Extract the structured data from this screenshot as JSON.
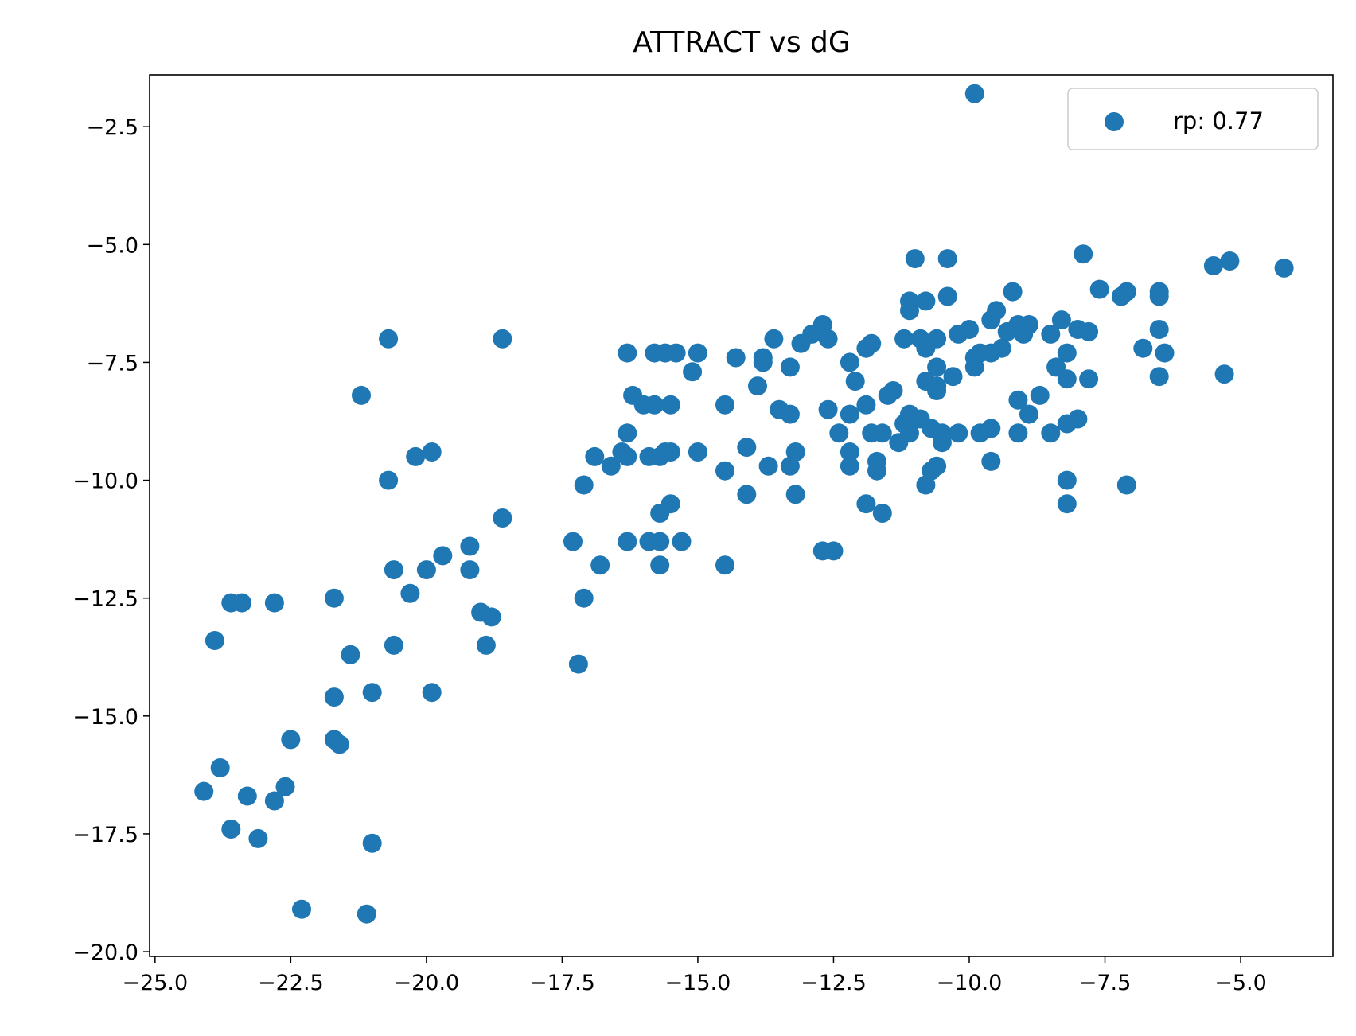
{
  "chart_data": {
    "type": "scatter",
    "title": "ATTRACT vs dG",
    "xlabel": "",
    "ylabel": "",
    "xlim": [
      -25.1,
      -3.3
    ],
    "ylim": [
      -20.1,
      -1.4
    ],
    "xticks": [
      -25.0,
      -22.5,
      -20.0,
      -17.5,
      -15.0,
      -12.5,
      -10.0,
      -7.5,
      -5.0
    ],
    "xtick_labels": [
      "−25.0",
      "−22.5",
      "−20.0",
      "−17.5",
      "−15.0",
      "−12.5",
      "−10.0",
      "−7.5",
      "−5.0"
    ],
    "yticks": [
      -2.5,
      -5.0,
      -7.5,
      -10.0,
      -12.5,
      -15.0,
      -17.5,
      -20.0
    ],
    "ytick_labels": [
      "−2.5",
      "−5.0",
      "−7.5",
      "−10.0",
      "−12.5",
      "−15.0",
      "−17.5",
      "−20.0"
    ],
    "grid": false,
    "legend_position": "top-right",
    "series": [
      {
        "name": "rp: 0.77",
        "color": "#1f77b4",
        "points": [
          [
            -9.9,
            -1.8
          ],
          [
            -4.2,
            -5.5
          ],
          [
            -5.2,
            -5.35
          ],
          [
            -5.5,
            -5.45
          ],
          [
            -7.9,
            -5.2
          ],
          [
            -11.0,
            -5.3
          ],
          [
            -10.4,
            -5.3
          ],
          [
            -7.6,
            -5.95
          ],
          [
            -7.1,
            -6.0
          ],
          [
            -7.2,
            -6.1
          ],
          [
            -6.5,
            -6.0
          ],
          [
            -6.5,
            -6.1
          ],
          [
            -9.2,
            -6.0
          ],
          [
            -11.1,
            -6.2
          ],
          [
            -10.8,
            -6.2
          ],
          [
            -10.4,
            -6.1
          ],
          [
            -11.1,
            -6.4
          ],
          [
            -9.5,
            -6.4
          ],
          [
            -9.6,
            -6.6
          ],
          [
            -9.1,
            -6.7
          ],
          [
            -8.9,
            -6.7
          ],
          [
            -8.3,
            -6.6
          ],
          [
            -8.0,
            -6.8
          ],
          [
            -7.8,
            -6.85
          ],
          [
            -8.5,
            -6.9
          ],
          [
            -9.0,
            -6.9
          ],
          [
            -9.3,
            -6.85
          ],
          [
            -10.0,
            -6.8
          ],
          [
            -10.2,
            -6.9
          ],
          [
            -6.5,
            -6.8
          ],
          [
            -12.7,
            -6.7
          ],
          [
            -12.9,
            -6.9
          ],
          [
            -12.6,
            -7.0
          ],
          [
            -13.1,
            -7.1
          ],
          [
            -13.6,
            -7.0
          ],
          [
            -11.2,
            -7.0
          ],
          [
            -10.9,
            -7.0
          ],
          [
            -10.6,
            -7.0
          ],
          [
            -10.8,
            -7.2
          ],
          [
            -11.8,
            -7.1
          ],
          [
            -11.9,
            -7.2
          ],
          [
            -9.6,
            -7.3
          ],
          [
            -9.8,
            -7.3
          ],
          [
            -9.9,
            -7.4
          ],
          [
            -9.4,
            -7.2
          ],
          [
            -6.8,
            -7.2
          ],
          [
            -6.4,
            -7.3
          ],
          [
            -8.2,
            -7.3
          ],
          [
            -16.3,
            -7.3
          ],
          [
            -15.8,
            -7.3
          ],
          [
            -15.6,
            -7.3
          ],
          [
            -15.4,
            -7.3
          ],
          [
            -15.0,
            -7.3
          ],
          [
            -13.8,
            -7.4
          ],
          [
            -13.8,
            -7.5
          ],
          [
            -14.3,
            -7.4
          ],
          [
            -12.2,
            -7.5
          ],
          [
            -13.3,
            -7.6
          ],
          [
            -15.1,
            -7.7
          ],
          [
            -10.6,
            -7.6
          ],
          [
            -9.9,
            -7.6
          ],
          [
            -8.4,
            -7.6
          ],
          [
            -5.3,
            -7.75
          ],
          [
            -6.5,
            -7.8
          ],
          [
            -7.8,
            -7.85
          ],
          [
            -8.2,
            -7.85
          ],
          [
            -10.3,
            -7.8
          ],
          [
            -10.8,
            -7.9
          ],
          [
            -10.6,
            -8.0
          ],
          [
            -10.6,
            -8.1
          ],
          [
            -12.1,
            -7.9
          ],
          [
            -13.9,
            -8.0
          ],
          [
            -11.4,
            -8.1
          ],
          [
            -11.5,
            -8.2
          ],
          [
            -16.2,
            -8.2
          ],
          [
            -16.0,
            -8.4
          ],
          [
            -15.8,
            -8.4
          ],
          [
            -15.5,
            -8.4
          ],
          [
            -14.5,
            -8.4
          ],
          [
            -21.2,
            -8.2
          ],
          [
            -20.7,
            -7.0
          ],
          [
            -18.6,
            -7.0
          ],
          [
            -9.1,
            -8.3
          ],
          [
            -8.7,
            -8.2
          ],
          [
            -8.9,
            -8.6
          ],
          [
            -11.9,
            -8.4
          ],
          [
            -12.2,
            -8.6
          ],
          [
            -12.6,
            -8.5
          ],
          [
            -13.3,
            -8.6
          ],
          [
            -13.5,
            -8.5
          ],
          [
            -11.1,
            -8.6
          ],
          [
            -10.9,
            -8.7
          ],
          [
            -11.2,
            -8.8
          ],
          [
            -10.7,
            -8.9
          ],
          [
            -10.5,
            -9.0
          ],
          [
            -10.2,
            -9.0
          ],
          [
            -9.8,
            -9.0
          ],
          [
            -9.6,
            -8.9
          ],
          [
            -9.1,
            -9.0
          ],
          [
            -8.5,
            -9.0
          ],
          [
            -8.2,
            -8.8
          ],
          [
            -8.0,
            -8.7
          ],
          [
            -12.4,
            -9.0
          ],
          [
            -11.8,
            -9.0
          ],
          [
            -11.6,
            -9.0
          ],
          [
            -11.3,
            -9.2
          ],
          [
            -11.1,
            -9.0
          ],
          [
            -10.5,
            -9.2
          ],
          [
            -12.2,
            -9.4
          ],
          [
            -13.2,
            -9.4
          ],
          [
            -14.1,
            -9.3
          ],
          [
            -15.0,
            -9.4
          ],
          [
            -16.3,
            -9.0
          ],
          [
            -16.4,
            -9.4
          ],
          [
            -16.3,
            -9.5
          ],
          [
            -15.9,
            -9.5
          ],
          [
            -15.7,
            -9.5
          ],
          [
            -15.6,
            -9.4
          ],
          [
            -15.5,
            -9.4
          ],
          [
            -16.9,
            -9.5
          ],
          [
            -16.6,
            -9.7
          ],
          [
            -19.9,
            -9.4
          ],
          [
            -20.2,
            -9.5
          ],
          [
            -20.7,
            -10.0
          ],
          [
            -9.6,
            -9.6
          ],
          [
            -11.7,
            -9.6
          ],
          [
            -11.7,
            -9.8
          ],
          [
            -12.2,
            -9.7
          ],
          [
            -13.3,
            -9.7
          ],
          [
            -13.7,
            -9.7
          ],
          [
            -14.5,
            -9.8
          ],
          [
            -10.6,
            -9.7
          ],
          [
            -10.7,
            -9.8
          ],
          [
            -10.8,
            -10.1
          ],
          [
            -7.1,
            -10.1
          ],
          [
            -8.2,
            -10.0
          ],
          [
            -17.1,
            -10.1
          ],
          [
            -14.1,
            -10.3
          ],
          [
            -13.2,
            -10.3
          ],
          [
            -11.9,
            -10.5
          ],
          [
            -11.6,
            -10.7
          ],
          [
            -8.2,
            -10.5
          ],
          [
            -15.5,
            -10.5
          ],
          [
            -15.7,
            -10.7
          ],
          [
            -18.6,
            -10.8
          ],
          [
            -17.3,
            -11.3
          ],
          [
            -16.3,
            -11.3
          ],
          [
            -15.9,
            -11.3
          ],
          [
            -15.7,
            -11.3
          ],
          [
            -15.3,
            -11.3
          ],
          [
            -15.7,
            -11.8
          ],
          [
            -16.8,
            -11.8
          ],
          [
            -14.5,
            -11.8
          ],
          [
            -12.7,
            -11.5
          ],
          [
            -12.5,
            -11.5
          ],
          [
            -19.2,
            -11.4
          ],
          [
            -19.7,
            -11.6
          ],
          [
            -20.0,
            -11.9
          ],
          [
            -19.2,
            -11.9
          ],
          [
            -20.6,
            -11.9
          ],
          [
            -17.1,
            -12.5
          ],
          [
            -20.3,
            -12.4
          ],
          [
            -21.7,
            -12.5
          ],
          [
            -22.8,
            -12.6
          ],
          [
            -23.6,
            -12.6
          ],
          [
            -23.4,
            -12.6
          ],
          [
            -19.0,
            -12.8
          ],
          [
            -18.8,
            -12.9
          ],
          [
            -23.9,
            -13.4
          ],
          [
            -20.6,
            -13.5
          ],
          [
            -18.9,
            -13.5
          ],
          [
            -21.4,
            -13.7
          ],
          [
            -17.2,
            -13.9
          ],
          [
            -21.0,
            -14.5
          ],
          [
            -19.9,
            -14.5
          ],
          [
            -21.7,
            -14.6
          ],
          [
            -22.5,
            -15.5
          ],
          [
            -21.7,
            -15.5
          ],
          [
            -21.6,
            -15.6
          ],
          [
            -23.8,
            -16.1
          ],
          [
            -24.1,
            -16.6
          ],
          [
            -23.3,
            -16.7
          ],
          [
            -22.6,
            -16.5
          ],
          [
            -22.8,
            -16.8
          ],
          [
            -23.6,
            -17.4
          ],
          [
            -23.1,
            -17.6
          ],
          [
            -21.0,
            -17.7
          ],
          [
            -22.3,
            -19.1
          ],
          [
            -21.1,
            -19.2
          ]
        ]
      }
    ]
  }
}
